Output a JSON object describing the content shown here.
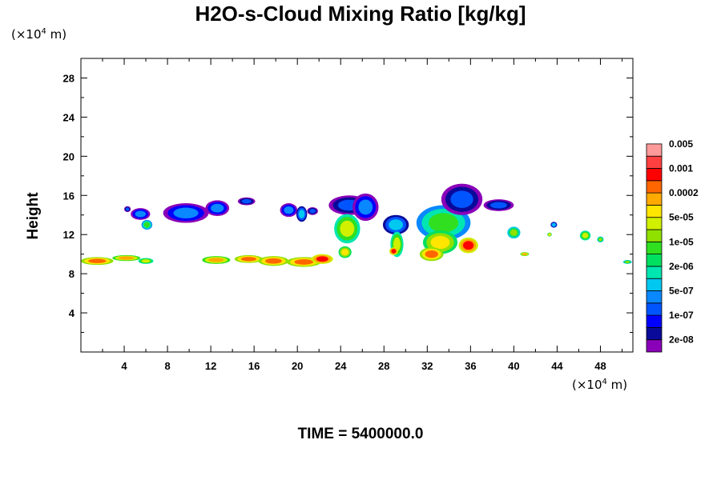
{
  "chart_data": {
    "type": "heatmap",
    "title": "H2O-s-Cloud Mixing Ratio [kg/kg]",
    "ylabel": "Height",
    "xlabel": "",
    "x_unit_prefix": "(×10",
    "x_unit_exp": "4",
    "x_unit_suffix": " m)",
    "y_unit_prefix": "(×10",
    "y_unit_exp": "4",
    "y_unit_suffix": " m)",
    "footer": "TIME = 5400000.0",
    "xlim": [
      0,
      51
    ],
    "ylim": [
      0,
      30
    ],
    "x_ticks": [
      4,
      8,
      12,
      16,
      20,
      24,
      28,
      32,
      36,
      40,
      44,
      48
    ],
    "y_ticks": [
      4,
      8,
      12,
      16,
      20,
      24,
      28
    ],
    "colorbar": {
      "colors": [
        "#8a00b8",
        "#0a0a9a",
        "#0000ff",
        "#0055ff",
        "#0a88ff",
        "#00c8f0",
        "#00e6b0",
        "#00e060",
        "#30e020",
        "#90e000",
        "#d0f000",
        "#ffe600",
        "#ffaa00",
        "#ff6600",
        "#ff0000",
        "#ff4040",
        "#ff9a9a"
      ],
      "labels": [
        "2e-08",
        "1e-07",
        "5e-07",
        "2e-06",
        "1e-05",
        "5e-05",
        "0.0002",
        "0.001",
        "0.005"
      ]
    },
    "regions": [
      {
        "x": 1.5,
        "y": 9.3,
        "rx": 1.5,
        "ry": 0.4,
        "level": 13
      },
      {
        "x": 4.2,
        "y": 9.6,
        "rx": 1.3,
        "ry": 0.3,
        "level": 12
      },
      {
        "x": 6.0,
        "y": 9.3,
        "rx": 0.7,
        "ry": 0.3,
        "level": 10
      },
      {
        "x": 4.3,
        "y": 14.6,
        "rx": 0.3,
        "ry": 0.3,
        "level": 3
      },
      {
        "x": 5.5,
        "y": 14.1,
        "rx": 0.9,
        "ry": 0.6,
        "level": 4
      },
      {
        "x": 6.1,
        "y": 13.0,
        "rx": 0.5,
        "ry": 0.5,
        "level": 8
      },
      {
        "x": 9.7,
        "y": 14.2,
        "rx": 2.1,
        "ry": 1.0,
        "level": 4
      },
      {
        "x": 12.6,
        "y": 14.7,
        "rx": 1.1,
        "ry": 0.8,
        "level": 4
      },
      {
        "x": 15.3,
        "y": 15.4,
        "rx": 0.8,
        "ry": 0.4,
        "level": 3
      },
      {
        "x": 12.5,
        "y": 9.4,
        "rx": 1.3,
        "ry": 0.4,
        "level": 12
      },
      {
        "x": 15.5,
        "y": 9.5,
        "rx": 1.3,
        "ry": 0.4,
        "level": 13
      },
      {
        "x": 17.8,
        "y": 9.3,
        "rx": 1.4,
        "ry": 0.5,
        "level": 13
      },
      {
        "x": 20.6,
        "y": 9.2,
        "rx": 1.6,
        "ry": 0.5,
        "level": 13
      },
      {
        "x": 22.3,
        "y": 9.5,
        "rx": 1.0,
        "ry": 0.5,
        "level": 14
      },
      {
        "x": 19.2,
        "y": 14.5,
        "rx": 0.8,
        "ry": 0.7,
        "level": 4
      },
      {
        "x": 20.4,
        "y": 14.1,
        "rx": 0.5,
        "ry": 0.8,
        "level": 5
      },
      {
        "x": 21.4,
        "y": 14.4,
        "rx": 0.5,
        "ry": 0.4,
        "level": 3
      },
      {
        "x": 24.8,
        "y": 15.0,
        "rx": 1.9,
        "ry": 1.0,
        "level": 3
      },
      {
        "x": 26.3,
        "y": 14.8,
        "rx": 1.2,
        "ry": 1.4,
        "level": 4
      },
      {
        "x": 24.6,
        "y": 12.6,
        "rx": 1.2,
        "ry": 1.5,
        "level": 10
      },
      {
        "x": 24.4,
        "y": 10.2,
        "rx": 0.6,
        "ry": 0.6,
        "level": 11
      },
      {
        "x": 29.1,
        "y": 13.0,
        "rx": 1.2,
        "ry": 1.0,
        "level": 5
      },
      {
        "x": 29.2,
        "y": 11.0,
        "rx": 0.6,
        "ry": 1.3,
        "level": 10
      },
      {
        "x": 28.9,
        "y": 10.3,
        "rx": 0.4,
        "ry": 0.4,
        "level": 14
      },
      {
        "x": 33.5,
        "y": 13.2,
        "rx": 2.5,
        "ry": 1.8,
        "level": 8
      },
      {
        "x": 35.2,
        "y": 15.6,
        "rx": 1.9,
        "ry": 1.6,
        "level": 3
      },
      {
        "x": 33.2,
        "y": 11.2,
        "rx": 1.6,
        "ry": 1.2,
        "level": 11
      },
      {
        "x": 32.4,
        "y": 10.0,
        "rx": 1.1,
        "ry": 0.7,
        "level": 13
      },
      {
        "x": 35.8,
        "y": 10.9,
        "rx": 0.9,
        "ry": 0.8,
        "level": 14
      },
      {
        "x": 38.6,
        "y": 15.0,
        "rx": 1.4,
        "ry": 0.6,
        "level": 3
      },
      {
        "x": 40.0,
        "y": 12.2,
        "rx": 0.6,
        "ry": 0.6,
        "level": 9
      },
      {
        "x": 43.7,
        "y": 13.0,
        "rx": 0.3,
        "ry": 0.3,
        "level": 5
      },
      {
        "x": 43.3,
        "y": 12.0,
        "rx": 0.2,
        "ry": 0.2,
        "level": 11
      },
      {
        "x": 41.0,
        "y": 10.0,
        "rx": 0.4,
        "ry": 0.2,
        "level": 12
      },
      {
        "x": 46.6,
        "y": 11.9,
        "rx": 0.5,
        "ry": 0.5,
        "level": 10
      },
      {
        "x": 48.0,
        "y": 11.5,
        "rx": 0.3,
        "ry": 0.3,
        "level": 9
      },
      {
        "x": 50.5,
        "y": 9.2,
        "rx": 0.4,
        "ry": 0.2,
        "level": 9
      }
    ]
  }
}
